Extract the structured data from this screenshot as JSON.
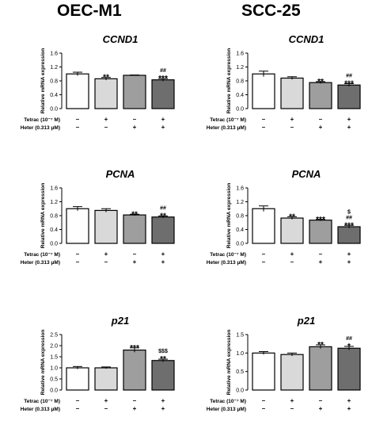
{
  "columns": [
    {
      "title": "OEC-M1"
    },
    {
      "title": "SCC-25"
    }
  ],
  "colors": {
    "bars": [
      "#ffffff",
      "#d9d9d9",
      "#9e9e9e",
      "#6e6e6e"
    ],
    "stroke": "#000000"
  },
  "chart_data": [
    {
      "type": "bar",
      "title": "CCND1",
      "ylabel": "Relative mRNA expression",
      "ylim": [
        0,
        1.6
      ],
      "yticks": [
        "0.0",
        "0.4",
        "0.8",
        "1.2",
        "1.6"
      ],
      "tickvals": [
        0,
        0.4,
        0.8,
        1.2,
        1.6
      ],
      "values": [
        1.0,
        0.86,
        0.96,
        0.83
      ],
      "errors": [
        0.05,
        0.04,
        0.01,
        0.04
      ],
      "annotations": [
        [],
        [
          "**"
        ],
        [],
        [
          "##",
          "***"
        ]
      ],
      "row_labels": [
        "Tetrac (10⁻⁷ M)",
        "Heter (0.313 μM)"
      ],
      "treatments": [
        [
          "–",
          "+",
          "–",
          "+"
        ],
        [
          "–",
          "–",
          "+",
          "+"
        ]
      ]
    },
    {
      "type": "bar",
      "title": "CCND1",
      "ylabel": "Relative mRNA expression",
      "ylim": [
        0,
        1.6
      ],
      "yticks": [
        "0.0",
        "0.4",
        "0.8",
        "1.2",
        "1.6"
      ],
      "tickvals": [
        0,
        0.4,
        0.8,
        1.2,
        1.6
      ],
      "values": [
        1.0,
        0.88,
        0.75,
        0.68
      ],
      "errors": [
        0.08,
        0.04,
        0.03,
        0.04
      ],
      "annotations": [
        [],
        [],
        [
          "**"
        ],
        [
          "##",
          "***"
        ]
      ],
      "row_labels": [
        "Tetrac (10⁻⁷ M)",
        "Heter (0.313 μM)"
      ],
      "treatments": [
        [
          "–",
          "+",
          "–",
          "+"
        ],
        [
          "–",
          "–",
          "+",
          "+"
        ]
      ]
    },
    {
      "type": "bar",
      "title": "PCNA",
      "ylabel": "Relative mRNA expression",
      "ylim": [
        0,
        1.6
      ],
      "yticks": [
        "0.0",
        "0.4",
        "0.8",
        "1.2",
        "1.6"
      ],
      "tickvals": [
        0,
        0.4,
        0.8,
        1.2,
        1.6
      ],
      "values": [
        1.0,
        0.95,
        0.82,
        0.76
      ],
      "errors": [
        0.06,
        0.05,
        0.02,
        0.03
      ],
      "annotations": [
        [],
        [],
        [
          "**"
        ],
        [
          "##",
          "**"
        ]
      ],
      "row_labels": [
        "Tetrac (10⁻⁷ M)",
        "Heter (0.313 μM)"
      ],
      "treatments": [
        [
          "–",
          "+",
          "–",
          "+"
        ],
        [
          "–",
          "–",
          "+",
          "+"
        ]
      ]
    },
    {
      "type": "bar",
      "title": "PCNA",
      "ylabel": "Relative mRNA expression",
      "ylim": [
        0,
        1.6
      ],
      "yticks": [
        "0.0",
        "0.4",
        "0.8",
        "1.2",
        "1.6"
      ],
      "tickvals": [
        0,
        0.4,
        0.8,
        1.2,
        1.6
      ],
      "values": [
        1.0,
        0.73,
        0.67,
        0.48
      ],
      "errors": [
        0.08,
        0.04,
        0.02,
        0.04
      ],
      "annotations": [
        [],
        [
          "**"
        ],
        [
          "***"
        ],
        [
          "$",
          "##",
          "***"
        ]
      ],
      "row_labels": [
        "Tetrac (10⁻⁷ M)",
        "Heter (0.313 μM)"
      ],
      "treatments": [
        [
          "–",
          "+",
          "–",
          "+"
        ],
        [
          "–",
          "–",
          "+",
          "+"
        ]
      ]
    },
    {
      "type": "bar",
      "title": "p21",
      "ylabel": "Relative mRNA expression",
      "ylim": [
        0,
        2.5
      ],
      "yticks": [
        "0.0",
        "0.5",
        "1.0",
        "1.5",
        "2.0",
        "2.5"
      ],
      "tickvals": [
        0,
        0.5,
        1.0,
        1.5,
        2.0,
        2.5
      ],
      "values": [
        1.0,
        1.0,
        1.8,
        1.33
      ],
      "errors": [
        0.06,
        0.04,
        0.1,
        0.06
      ],
      "annotations": [
        [],
        [],
        [
          "***"
        ],
        [
          "$$$",
          "**"
        ]
      ],
      "row_labels": [
        "Tetrac (10⁻⁷ M)",
        "Heter (0.313 μM)"
      ],
      "treatments": [
        [
          "–",
          "+",
          "–",
          "+"
        ],
        [
          "–",
          "–",
          "+",
          "+"
        ]
      ]
    },
    {
      "type": "bar",
      "title": "p21",
      "ylabel": "Relative mRNA expression",
      "ylim": [
        0,
        1.5
      ],
      "yticks": [
        "0.0",
        "0.5",
        "1.0",
        "1.5"
      ],
      "tickvals": [
        0,
        0.5,
        1.0,
        1.5
      ],
      "values": [
        1.0,
        0.96,
        1.17,
        1.13
      ],
      "errors": [
        0.04,
        0.04,
        0.05,
        0.05
      ],
      "annotations": [
        [],
        [],
        [
          "**"
        ],
        [
          "##",
          "*"
        ]
      ],
      "row_labels": [
        "Tetrac (10⁻⁷ M)",
        "Heter (0.313 μM)"
      ],
      "treatments": [
        [
          "–",
          "+",
          "–",
          "+"
        ],
        [
          "–",
          "–",
          "+",
          "+"
        ]
      ]
    }
  ]
}
